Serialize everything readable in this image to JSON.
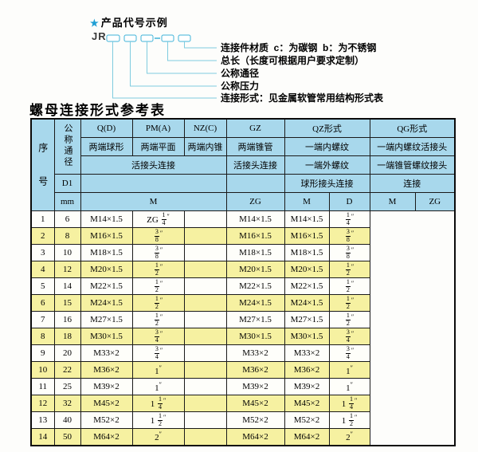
{
  "diagram": {
    "star": "★",
    "title": "产品代号示例",
    "prefix": "JR",
    "labels": [
      "连接件材质  c：为碳钢  b：为不锈钢",
      "总长（长度可根据用户要求定制）",
      "公称通径",
      "公称压力",
      "连接形式：见金属软管常用结构形式表"
    ]
  },
  "table": {
    "title": "螺母连接形式参考表",
    "header": {
      "seq": "序号",
      "dn": "公称通径",
      "d1": "D1",
      "mm": "mm",
      "q": "Q(D)",
      "pm": "PM(A)",
      "nz": "NZ(C)",
      "gz": "GZ",
      "qz": "QZ形式",
      "qg": "QG形式",
      "q_desc": "两端球形",
      "pm_desc": "两端平面",
      "nz_desc": "两端内锥",
      "gz_desc": "两端锥管",
      "qz_desc": "一端内螺纹",
      "qg_desc": "一端内螺纹活接头",
      "union_conn": "活接头连接",
      "gz_conn": "活接头连接",
      "qz_desc2": "一端外螺纹",
      "qg_desc2": "一端锥管螺纹接头",
      "qz_conn": "球形接头连接",
      "qg_conn": "连接",
      "m": "M",
      "zg": "ZG",
      "qz_m": "M",
      "qz_d": "D",
      "qg_m": "M",
      "qg_zg": "ZG"
    },
    "rows": [
      [
        "1",
        "6",
        "M14×1.5",
        "ZG 1/4\"",
        "",
        "M14×1.5",
        "M14×1.5",
        "1/4\""
      ],
      [
        "2",
        "8",
        "M16×1.5",
        "3/8\"",
        "",
        "M16×1.5",
        "M16×1.5",
        "3/8\""
      ],
      [
        "3",
        "10",
        "M18×1.5",
        "3/8\"",
        "",
        "M18×1.5",
        "M18×1.5",
        "3/8\""
      ],
      [
        "4",
        "12",
        "M20×1.5",
        "1/2\"",
        "",
        "M20×1.5",
        "M20×1.5",
        "1/2\""
      ],
      [
        "5",
        "14",
        "M22×1.5",
        "1/2\"",
        "",
        "M22×1.5",
        "M22×1.5",
        "1/2\""
      ],
      [
        "6",
        "15",
        "M24×1.5",
        "1/2\"",
        "",
        "M24×1.5",
        "M24×1.5",
        "1/2\""
      ],
      [
        "7",
        "16",
        "M27×1.5",
        "1/2\"",
        "",
        "M27×1.5",
        "M27×1.5",
        "1/2\""
      ],
      [
        "8",
        "18",
        "M30×1.5",
        "3/4\"",
        "",
        "M30×1.5",
        "M30×1.5",
        "3/4\""
      ],
      [
        "9",
        "20",
        "M33×2",
        "3/4\"",
        "",
        "M33×2",
        "M33×2",
        "3/4\""
      ],
      [
        "10",
        "22",
        "M36×2",
        "1\"",
        "",
        "M36×2",
        "M36×2",
        "1\""
      ],
      [
        "11",
        "25",
        "M39×2",
        "1\"",
        "",
        "M39×2",
        "M39×2",
        "1\""
      ],
      [
        "12",
        "32",
        "M45×2",
        "1 1/4\"",
        "",
        "M45×2",
        "M45×2",
        "1 1/4\""
      ],
      [
        "13",
        "40",
        "M52×2",
        "1 1/2\"",
        "",
        "M52×2",
        "M52×2",
        "1 1/2\""
      ],
      [
        "14",
        "50",
        "M64×2",
        "2\"",
        "",
        "M64×2",
        "M64×2",
        "2\""
      ]
    ]
  },
  "colors": {
    "header_bg": "#a8d8ec",
    "row_alt": "#f6f1a1",
    "leader_line": "#7fccdf",
    "box_stroke": "#3fb3d8",
    "star": "#1f9fd4",
    "border": "#1a1a1a"
  }
}
